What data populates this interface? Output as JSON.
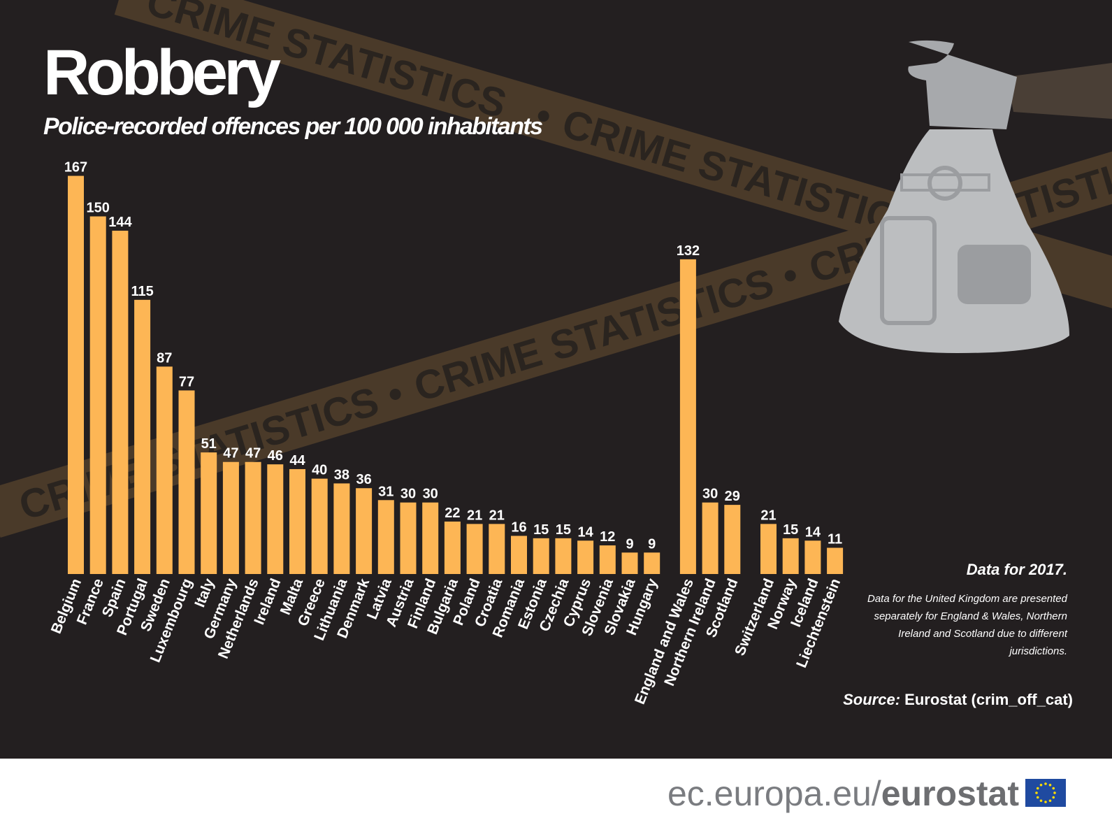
{
  "chart_data": {
    "type": "bar",
    "title": "Robbery",
    "subtitle": "Police-recorded offences per 100 000 inhabitants",
    "categories": [
      "Belgium",
      "France",
      "Spain",
      "Portugal",
      "Sweden",
      "Luxembourg",
      "Italy",
      "Germany",
      "Netherlands",
      "Ireland",
      "Malta",
      "Greece",
      "Lithuania",
      "Denmark",
      "Latvia",
      "Austria",
      "Finland",
      "Bulgaria",
      "Poland",
      "Croatia",
      "Romania",
      "Estonia",
      "Czechia",
      "Cyprus",
      "Slovenia",
      "Slovakia",
      "Hungary",
      null,
      "England and Wales",
      "Northern Ireland",
      "Scotland",
      null,
      "Switzerland",
      "Norway",
      "Iceland",
      "Liechtenstein"
    ],
    "values": [
      167,
      150,
      144,
      115,
      87,
      77,
      51,
      47,
      47,
      46,
      44,
      40,
      38,
      36,
      31,
      30,
      30,
      22,
      21,
      21,
      16,
      15,
      15,
      14,
      12,
      9,
      9,
      null,
      132,
      30,
      29,
      null,
      21,
      15,
      14,
      11
    ],
    "color": "#fdb655",
    "note": "Data for 2017.",
    "footnote": [
      "Data for the United Kingdom are presented",
      "separately for England & Wales, Northern",
      "Ireland and Scotland due to different",
      "jurisdictions."
    ],
    "source_label": "Source:",
    "source": "Eurostat (crim_off_cat)"
  },
  "background_text": "CRIME STATISTICS",
  "footer": {
    "site": "ec.europa.eu/",
    "brand": "eurostat"
  }
}
